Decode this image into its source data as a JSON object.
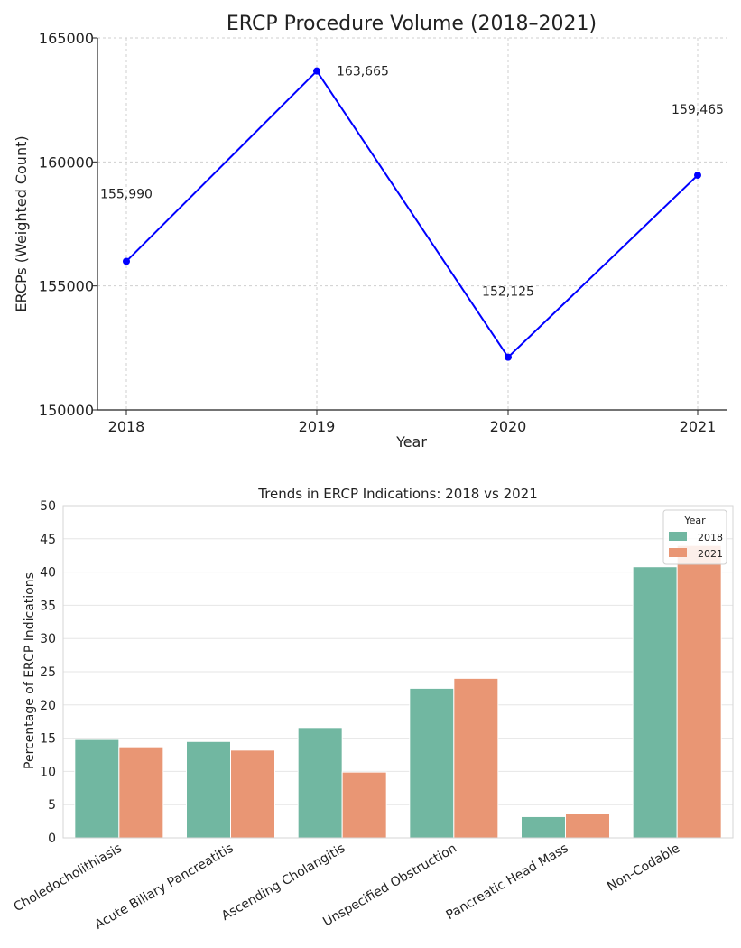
{
  "chart_data": [
    {
      "type": "line",
      "title": "ERCP Procedure Volume (2018–2021)",
      "xlabel": "Year",
      "ylabel": "ERCPs (Weighted Count)",
      "x": [
        "2018",
        "2019",
        "2020",
        "2021"
      ],
      "series": [
        {
          "values": [
            155990,
            163665,
            152125,
            159465
          ]
        }
      ],
      "data_labels": [
        "155,990",
        "163,665",
        "152,125",
        "159,465"
      ],
      "ylim": [
        150000,
        165000
      ],
      "yticks": [
        "150000",
        "155000",
        "160000",
        "165000"
      ],
      "grid": true,
      "line_color": "#0000ff"
    },
    {
      "type": "bar",
      "title": "Trends in ERCP Indications: 2018 vs 2021",
      "xlabel": "",
      "ylabel": "Percentage of ERCP Indications",
      "categories": [
        "Choledocholithiasis",
        "Acute Biliary Pancreatitis",
        "Ascending Cholangitis",
        "Unspecified Obstruction",
        "Pancreatic Head Mass",
        "Non-Codable"
      ],
      "series": [
        {
          "name": "2018",
          "values": [
            14.8,
            14.5,
            16.6,
            22.5,
            3.2,
            40.8
          ],
          "color": "#71b7a1"
        },
        {
          "name": "2021",
          "values": [
            13.7,
            13.2,
            9.9,
            24.0,
            3.6,
            44.0
          ],
          "color": "#e99674"
        }
      ],
      "ylim": [
        0,
        50
      ],
      "yticks": [
        "0",
        "5",
        "10",
        "15",
        "20",
        "25",
        "30",
        "35",
        "40",
        "45",
        "50"
      ],
      "grid": true,
      "legend": {
        "title": "Year",
        "position": "top-right"
      }
    }
  ]
}
